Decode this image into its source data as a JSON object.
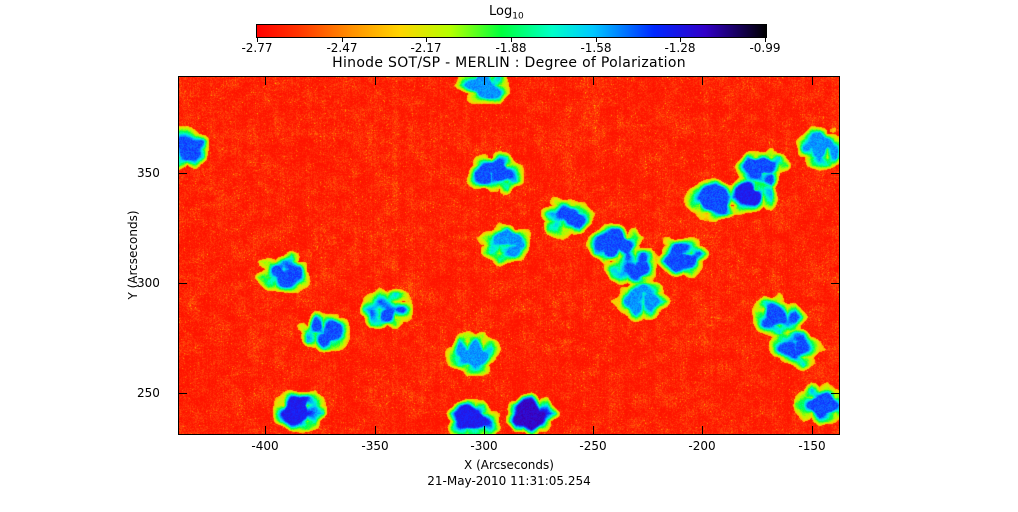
{
  "colorbar": {
    "title_text": "Log",
    "title_subscript": "10",
    "tick_labels": [
      "-2.77",
      "-2.47",
      "-2.17",
      "-1.88",
      "-1.58",
      "-1.28",
      "-0.99"
    ],
    "colors": [
      "#ff0000",
      "#ff8c00",
      "#ffd400",
      "#00ff3c",
      "#00ffc8",
      "#0028ff",
      "#000000"
    ]
  },
  "chart_data": {
    "type": "heatmap",
    "title": "Hinode SOT/SP - MERLIN : Degree of Polarization",
    "xlabel": "X (Arcseconds)",
    "ylabel": "Y (Arcseconds)",
    "xlim": [
      -440,
      -137
    ],
    "ylim": [
      231,
      394
    ],
    "x_ticks": [
      -400,
      -350,
      -300,
      -250,
      -200,
      -150
    ],
    "y_ticks": [
      250,
      300,
      350
    ],
    "colorbar_range": [
      -2.77,
      -0.99
    ],
    "colorbar_scale": "log10",
    "background_level": -2.7,
    "high_polarization_regions": [
      {
        "x": -278,
        "y": 240,
        "level": -1.2
      },
      {
        "x": -305,
        "y": 238,
        "level": -1.3
      },
      {
        "x": -385,
        "y": 242,
        "level": -1.3
      },
      {
        "x": -373,
        "y": 278,
        "level": -1.4
      },
      {
        "x": -392,
        "y": 305,
        "level": -1.4
      },
      {
        "x": -345,
        "y": 288,
        "level": -1.4
      },
      {
        "x": -305,
        "y": 268,
        "level": -1.5
      },
      {
        "x": -295,
        "y": 350,
        "level": -1.4
      },
      {
        "x": -290,
        "y": 318,
        "level": -1.5
      },
      {
        "x": -262,
        "y": 330,
        "level": -1.4
      },
      {
        "x": -240,
        "y": 318,
        "level": -1.4
      },
      {
        "x": -232,
        "y": 308,
        "level": -1.4
      },
      {
        "x": -210,
        "y": 312,
        "level": -1.4
      },
      {
        "x": -228,
        "y": 292,
        "level": -1.5
      },
      {
        "x": -178,
        "y": 340,
        "level": -1.3
      },
      {
        "x": -195,
        "y": 338,
        "level": -1.4
      },
      {
        "x": -172,
        "y": 352,
        "level": -1.4
      },
      {
        "x": -157,
        "y": 270,
        "level": -1.4
      },
      {
        "x": -165,
        "y": 285,
        "level": -1.4
      },
      {
        "x": -145,
        "y": 245,
        "level": -1.4
      },
      {
        "x": -438,
        "y": 362,
        "level": -1.4
      },
      {
        "x": -145,
        "y": 362,
        "level": -1.5
      },
      {
        "x": -300,
        "y": 390,
        "level": -1.5
      }
    ]
  },
  "timestamp": "21-May-2010 11:31:05.254"
}
